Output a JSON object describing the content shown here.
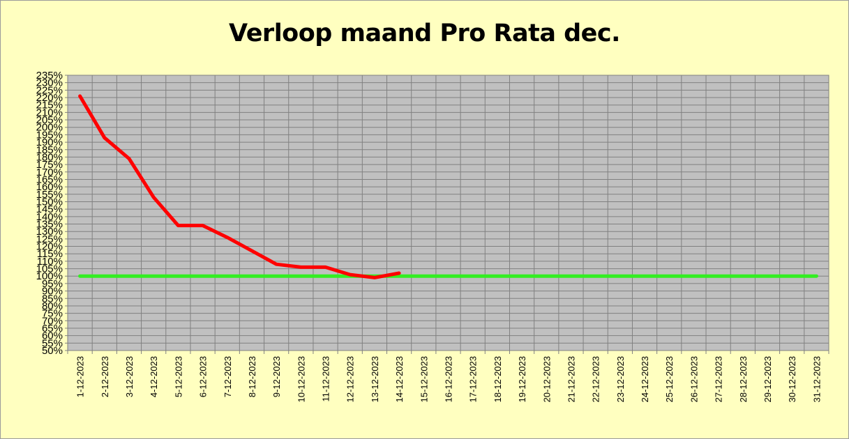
{
  "chart_data": {
    "type": "line",
    "title": "Verloop maand Pro Rata dec.",
    "xlabel": "",
    "ylabel": "",
    "categories": [
      "1-12-2023",
      "2-12-2023",
      "3-12-2023",
      "4-12-2023",
      "5-12-2023",
      "6-12-2023",
      "7-12-2023",
      "8-12-2023",
      "9-12-2023",
      "10-12-2023",
      "11-12-2023",
      "12-12-2023",
      "13-12-2023",
      "14-12-2023",
      "15-12-2023",
      "16-12-2023",
      "17-12-2023",
      "18-12-2023",
      "19-12-2023",
      "20-12-2023",
      "21-12-2023",
      "22-12-2023",
      "23-12-2023",
      "24-12-2023",
      "25-12-2023",
      "26-12-2023",
      "27-12-2023",
      "28-12-2023",
      "29-12-2023",
      "30-12-2023",
      "31-12-2023"
    ],
    "y_tick_labels": [
      "235%",
      "230%",
      "225%",
      "220%",
      "215%",
      "210%",
      "205%",
      "200%",
      "195%",
      "190%",
      "185%",
      "180%",
      "175%",
      "170%",
      "165%",
      "160%",
      "155%",
      "150%",
      "145%",
      "140%",
      "135%",
      "130%",
      "125%",
      "120%",
      "115%",
      "110%",
      "105%",
      "100%",
      "95%",
      "90%",
      "85%",
      "80%",
      "75%",
      "70%",
      "65%",
      "60%",
      "55%",
      "50%"
    ],
    "ylim": [
      50,
      235
    ],
    "y_unit": "%",
    "grid": true,
    "legend": "none",
    "series": [
      {
        "color": "#ff0000",
        "values": [
          221,
          193,
          179,
          153,
          134,
          134,
          126,
          117,
          108,
          106,
          106,
          101,
          99,
          102,
          null,
          null,
          null,
          null,
          null,
          null,
          null,
          null,
          null,
          null,
          null,
          null,
          null,
          null,
          null,
          null,
          null
        ]
      },
      {
        "color": "#33ee22",
        "values": [
          100,
          100,
          100,
          100,
          100,
          100,
          100,
          100,
          100,
          100,
          100,
          100,
          100,
          100,
          100,
          100,
          100,
          100,
          100,
          100,
          100,
          100,
          100,
          100,
          100,
          100,
          100,
          100,
          100,
          100,
          100
        ]
      }
    ]
  },
  "style": {
    "background": "#ffffc0",
    "plot_background": "#c0c0c0",
    "grid_color": "#808080"
  }
}
